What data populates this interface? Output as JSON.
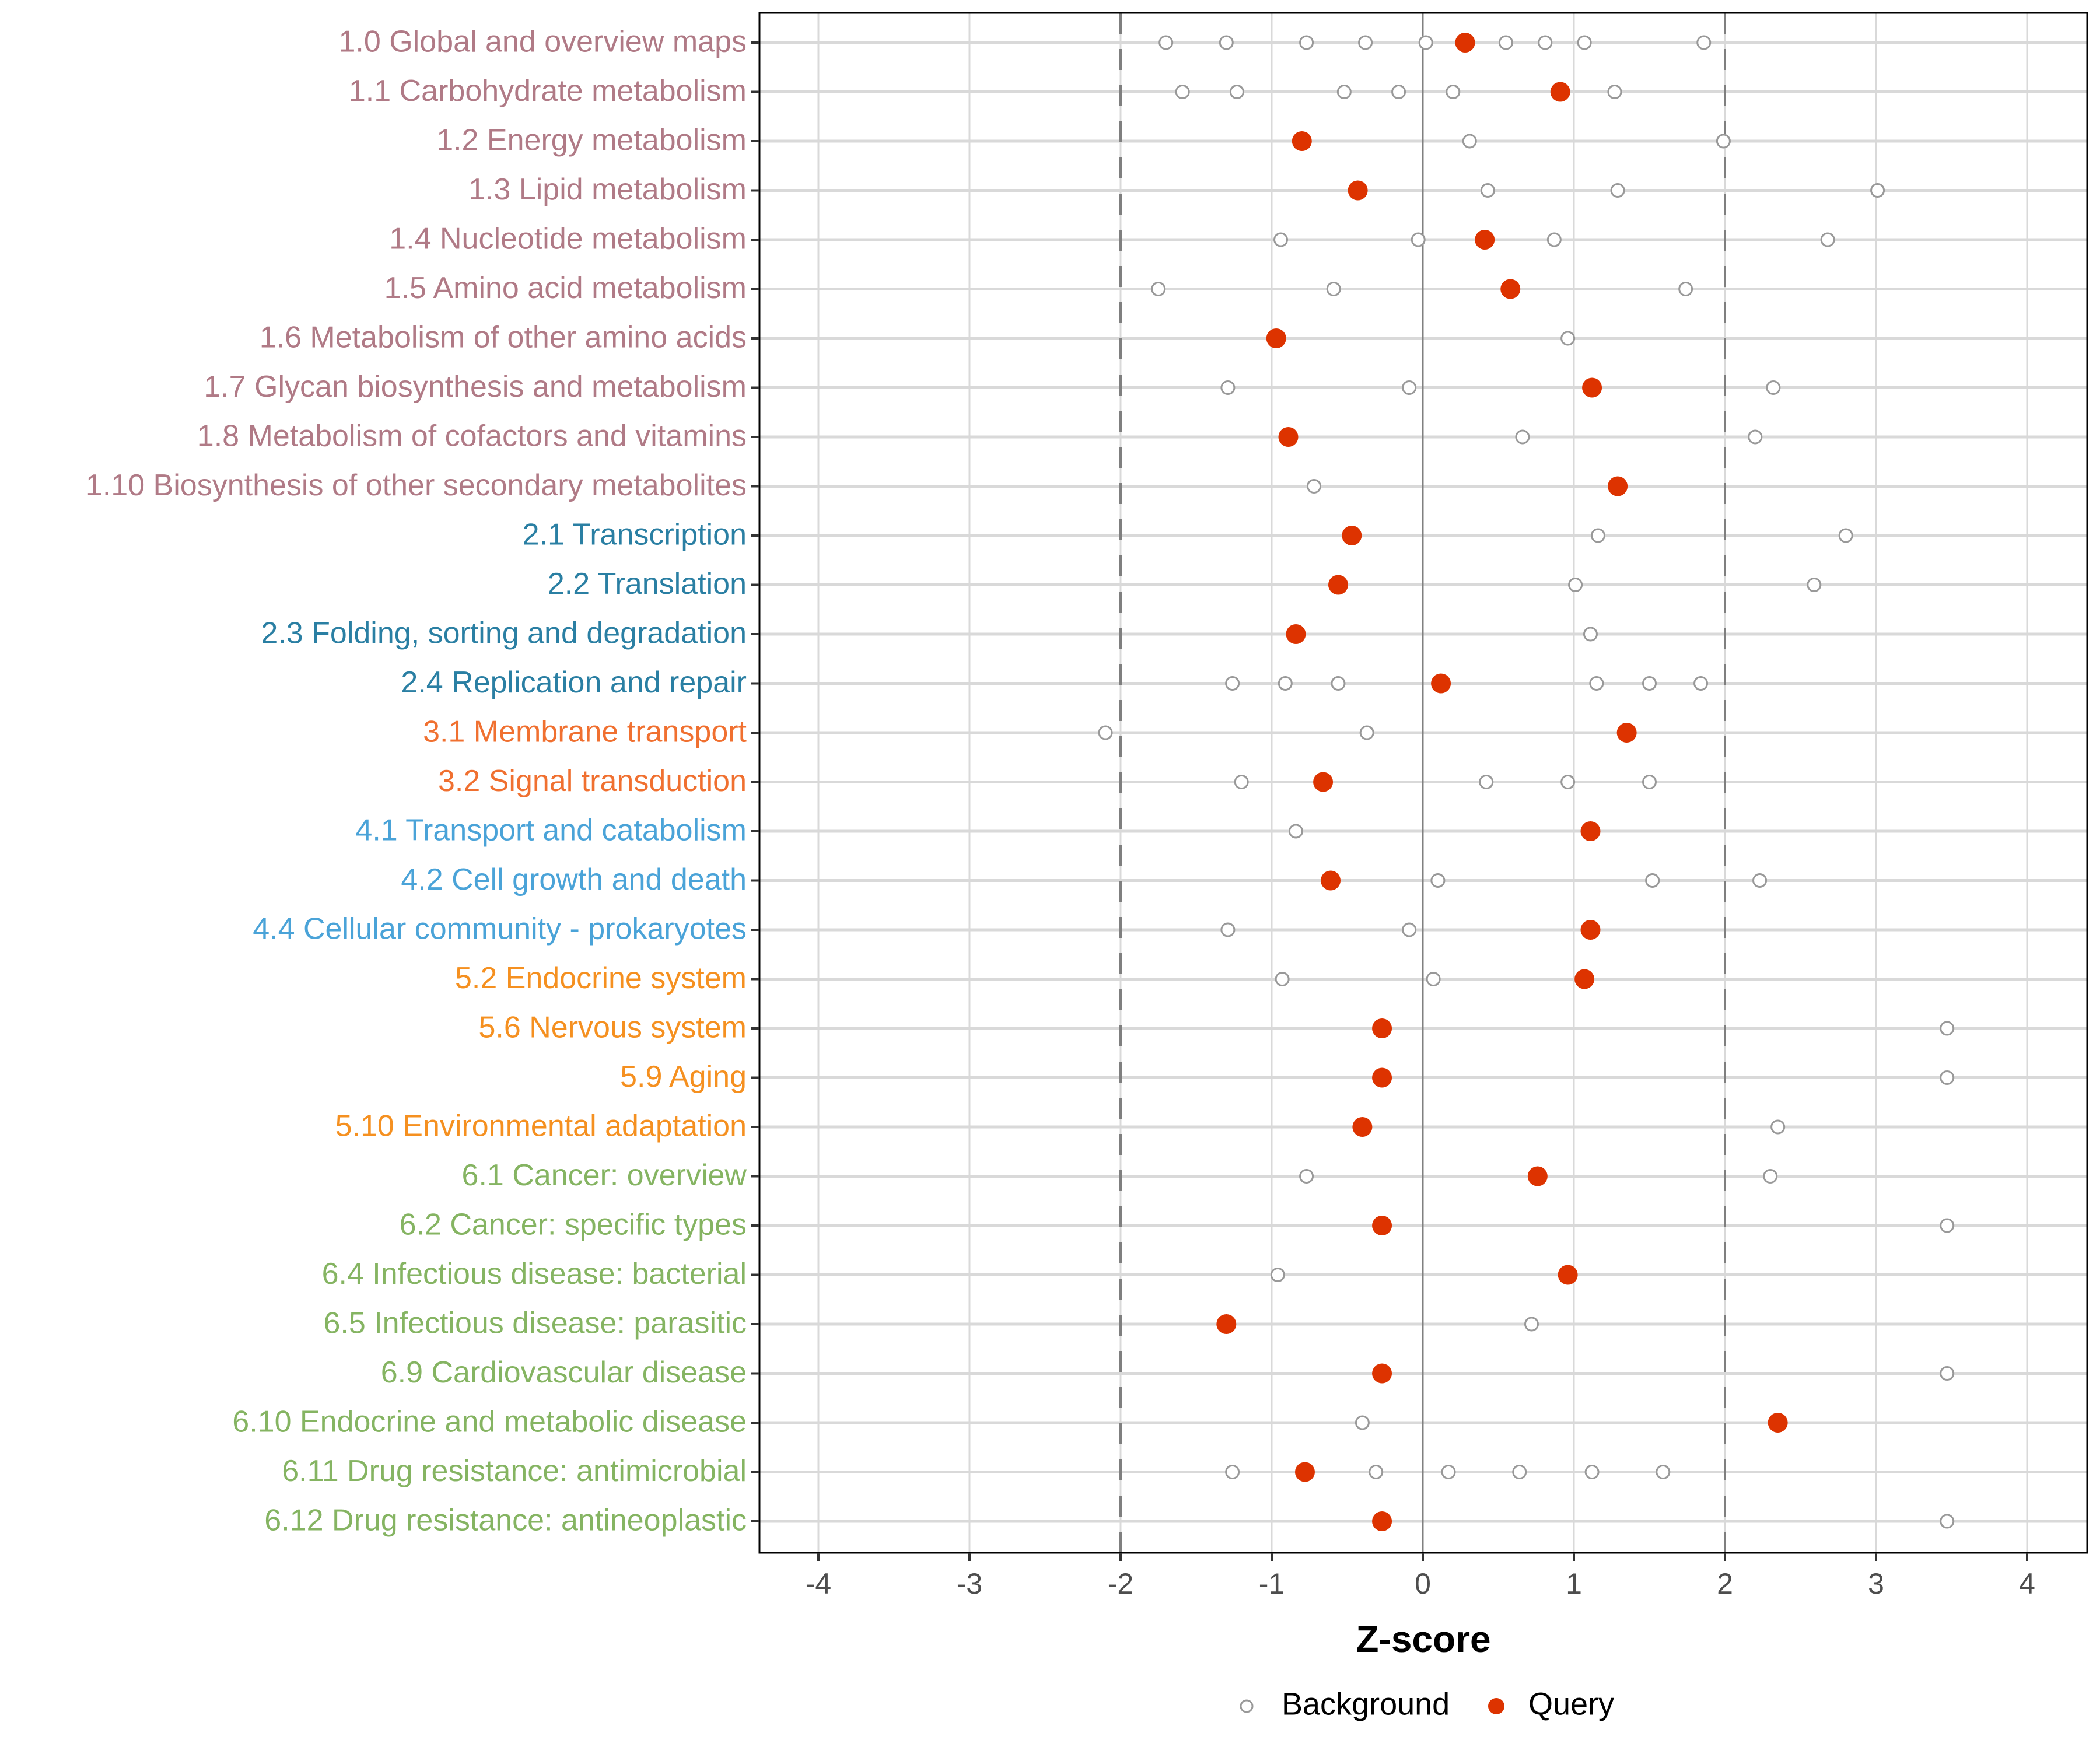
{
  "chart_data": {
    "type": "scatter",
    "title": "",
    "xlabel": "Z-score",
    "ylabel": "",
    "xlim": [
      -4.4,
      4.4
    ],
    "x_ticks": [
      -4,
      -3,
      -2,
      -1,
      0,
      1,
      2,
      3,
      4
    ],
    "x_tick_labels": [
      "-4",
      "-3",
      "-2",
      "-1",
      "0",
      "1",
      "2",
      "3",
      "4"
    ],
    "reference_lines": {
      "solid": [
        0
      ],
      "dashed": [
        -2,
        2
      ]
    },
    "grid": true,
    "legend": {
      "placement": "bottom",
      "entries": [
        {
          "name": "Background",
          "style": "open-circle",
          "color": "#999999"
        },
        {
          "name": "Query",
          "style": "filled-circle",
          "color": "#DD3300"
        }
      ]
    },
    "group_colors": {
      "1": "#B07A86",
      "2": "#2A7FA3",
      "3": "#F07030",
      "4": "#4AA3D8",
      "5": "#F59020",
      "6": "#85B462"
    },
    "categories": [
      {
        "label": "1.0 Global and overview maps",
        "group": "1",
        "query": 0.28,
        "background": [
          -1.7,
          -1.3,
          -0.77,
          -0.38,
          0.02,
          0.55,
          0.81,
          1.07,
          1.86
        ]
      },
      {
        "label": "1.1 Carbohydrate metabolism",
        "group": "1",
        "query": 0.91,
        "background": [
          -1.59,
          -1.23,
          -0.52,
          -0.16,
          0.2,
          1.27
        ]
      },
      {
        "label": "1.2 Energy metabolism",
        "group": "1",
        "query": -0.8,
        "background": [
          0.31,
          1.99
        ]
      },
      {
        "label": "1.3 Lipid metabolism",
        "group": "1",
        "query": -0.43,
        "background": [
          0.43,
          1.29,
          3.01
        ]
      },
      {
        "label": "1.4 Nucleotide metabolism",
        "group": "1",
        "query": 0.41,
        "background": [
          -0.94,
          -0.03,
          0.87,
          2.68
        ]
      },
      {
        "label": "1.5 Amino acid metabolism",
        "group": "1",
        "query": 0.58,
        "background": [
          -1.75,
          -0.59,
          1.74
        ]
      },
      {
        "label": "1.6 Metabolism of other amino acids",
        "group": "1",
        "query": -0.97,
        "background": [
          0.96
        ]
      },
      {
        "label": "1.7 Glycan biosynthesis and metabolism",
        "group": "1",
        "query": 1.12,
        "background": [
          -1.29,
          -0.09,
          2.32
        ]
      },
      {
        "label": "1.8 Metabolism of cofactors and vitamins",
        "group": "1",
        "query": -0.89,
        "background": [
          0.66,
          2.2
        ]
      },
      {
        "label": "1.10 Biosynthesis of other secondary metabolites",
        "group": "1",
        "query": 1.29,
        "background": [
          -0.72
        ]
      },
      {
        "label": "2.1 Transcription",
        "group": "2",
        "query": -0.47,
        "background": [
          1.16,
          2.8
        ]
      },
      {
        "label": "2.2 Translation",
        "group": "2",
        "query": -0.56,
        "background": [
          1.01,
          2.59
        ]
      },
      {
        "label": "2.3 Folding, sorting and degradation",
        "group": "2",
        "query": -0.84,
        "background": [
          1.11
        ]
      },
      {
        "label": "2.4 Replication and repair",
        "group": "2",
        "query": 0.12,
        "background": [
          -1.26,
          -0.91,
          -0.56,
          1.15,
          1.5,
          1.84
        ]
      },
      {
        "label": "3.1 Membrane transport",
        "group": "3",
        "query": 1.35,
        "background": [
          -2.1,
          -0.37
        ]
      },
      {
        "label": "3.2 Signal transduction",
        "group": "3",
        "query": -0.66,
        "background": [
          -1.2,
          0.42,
          0.96,
          1.5
        ]
      },
      {
        "label": "4.1 Transport and catabolism",
        "group": "4",
        "query": 1.11,
        "background": [
          -0.84
        ]
      },
      {
        "label": "4.2 Cell growth and death",
        "group": "4",
        "query": -0.61,
        "background": [
          0.1,
          1.52,
          2.23
        ]
      },
      {
        "label": "4.4 Cellular community - prokaryotes",
        "group": "4",
        "query": 1.11,
        "background": [
          -1.29,
          -0.09
        ]
      },
      {
        "label": "5.2 Endocrine system",
        "group": "5",
        "query": 1.07,
        "background": [
          -0.93,
          0.07
        ]
      },
      {
        "label": "5.6 Nervous system",
        "group": "5",
        "query": -0.27,
        "background": [
          3.47
        ]
      },
      {
        "label": "5.9 Aging",
        "group": "5",
        "query": -0.27,
        "background": [
          3.47
        ]
      },
      {
        "label": "5.10 Environmental adaptation",
        "group": "5",
        "query": -0.4,
        "background": [
          2.35
        ]
      },
      {
        "label": "6.1 Cancer: overview",
        "group": "6",
        "query": 0.76,
        "background": [
          -0.77,
          2.3
        ]
      },
      {
        "label": "6.2 Cancer: specific types",
        "group": "6",
        "query": -0.27,
        "background": [
          3.47
        ]
      },
      {
        "label": "6.4 Infectious disease: bacterial",
        "group": "6",
        "query": 0.96,
        "background": [
          -0.96
        ]
      },
      {
        "label": "6.5 Infectious disease: parasitic",
        "group": "6",
        "query": -1.3,
        "background": [
          0.72
        ]
      },
      {
        "label": "6.9 Cardiovascular disease",
        "group": "6",
        "query": -0.27,
        "background": [
          3.47
        ]
      },
      {
        "label": "6.10 Endocrine and metabolic disease",
        "group": "6",
        "query": 2.35,
        "background": [
          -0.4
        ]
      },
      {
        "label": "6.11 Drug resistance: antimicrobial",
        "group": "6",
        "query": -0.78,
        "background": [
          -1.26,
          -0.31,
          0.17,
          0.64,
          1.12,
          1.59
        ]
      },
      {
        "label": "6.12 Drug resistance: antineoplastic",
        "group": "6",
        "query": -0.27,
        "background": [
          3.47
        ]
      }
    ]
  }
}
